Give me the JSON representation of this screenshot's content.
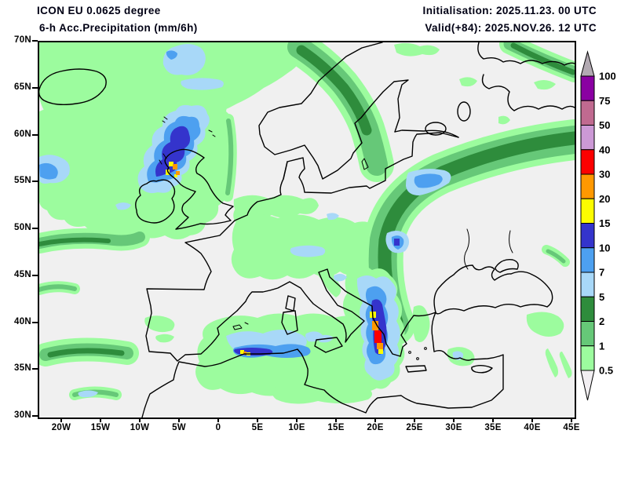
{
  "header": {
    "model_line": "ICON EU 0.0625 degree",
    "product_line": "6-h Acc.Precipitation (mm/6h)",
    "init_line": "Initialisation: 2025.11.23. 00 UTC",
    "valid_line": "Valid(+84): 2025.NOV.26. 12 UTC"
  },
  "axes": {
    "lat_labels": [
      "70N",
      "65N",
      "60N",
      "55N",
      "50N",
      "45N",
      "40N",
      "35N",
      "30N"
    ],
    "lon_labels": [
      "20W",
      "15W",
      "10W",
      "5W",
      "0",
      "5E",
      "10E",
      "15E",
      "20E",
      "25E",
      "30E",
      "35E",
      "40E",
      "45E"
    ]
  },
  "colorbar": {
    "unit": "mm/6h",
    "labels_top_to_bottom": [
      "100",
      "75",
      "50",
      "40",
      "30",
      "20",
      "15",
      "10",
      "7",
      "5",
      "2",
      "1",
      "0.5"
    ],
    "segment_colors_top_to_bottom": [
      "#8a00a2",
      "#c06a90",
      "#cc99d6",
      "#fc0000",
      "#ff9800",
      "#fcfc00",
      "#3434cc",
      "#4da0f0",
      "#a8d8f8",
      "#2e8c3c",
      "#66c878",
      "#9cfc9e"
    ],
    "above_max_arrow_color": "#b2a9b2",
    "below_min_arrow_color": "#f2eff2"
  },
  "map": {
    "background_color": "#f0f0f0",
    "coastline_color": "#000000",
    "precip_palette_mm_per_6h": {
      "0.5-1": "#9cfc9e",
      "1-2": "#66c878",
      "2-5": "#2e8c3c",
      "5-7": "#a8d8f8",
      "7-10": "#4da0f0",
      "10-15": "#3434cc",
      "15-20": "#fcfc00",
      "20-30": "#ff9800",
      "30-40": "#fc0000",
      "40-50": "#cc99d6",
      "50-75": "#c06a90",
      "75-100": "#8a00a2"
    }
  },
  "text_color": "#000014"
}
